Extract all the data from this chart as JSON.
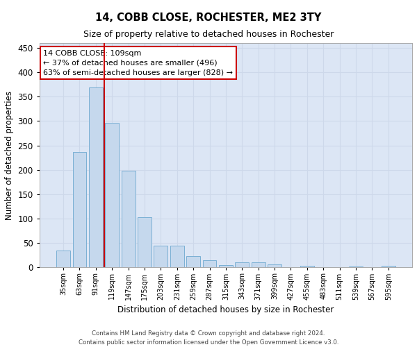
{
  "title": "14, COBB CLOSE, ROCHESTER, ME2 3TY",
  "subtitle": "Size of property relative to detached houses in Rochester",
  "xlabel": "Distribution of detached houses by size in Rochester",
  "ylabel": "Number of detached properties",
  "categories": [
    "35sqm",
    "63sqm",
    "91sqm",
    "119sqm",
    "147sqm",
    "175sqm",
    "203sqm",
    "231sqm",
    "259sqm",
    "287sqm",
    "315sqm",
    "343sqm",
    "371sqm",
    "399sqm",
    "427sqm",
    "455sqm",
    "483sqm",
    "511sqm",
    "539sqm",
    "567sqm",
    "595sqm"
  ],
  "values": [
    35,
    236,
    369,
    297,
    198,
    103,
    45,
    45,
    23,
    15,
    5,
    10,
    10,
    6,
    0,
    4,
    0,
    0,
    2,
    0,
    3
  ],
  "bar_color": "#c5d8ed",
  "bar_edge_color": "#7aafd4",
  "vline_color": "#cc0000",
  "annotation_text": "14 COBB CLOSE: 109sqm\n← 37% of detached houses are smaller (496)\n63% of semi-detached houses are larger (828) →",
  "annotation_box_color": "#ffffff",
  "annotation_box_edge": "#cc0000",
  "grid_color": "#cdd8ea",
  "bg_color": "#dce6f5",
  "ylim": [
    0,
    460
  ],
  "yticks": [
    0,
    50,
    100,
    150,
    200,
    250,
    300,
    350,
    400,
    450
  ],
  "footer": "Contains HM Land Registry data © Crown copyright and database right 2024.\nContains public sector information licensed under the Open Government Licence v3.0."
}
